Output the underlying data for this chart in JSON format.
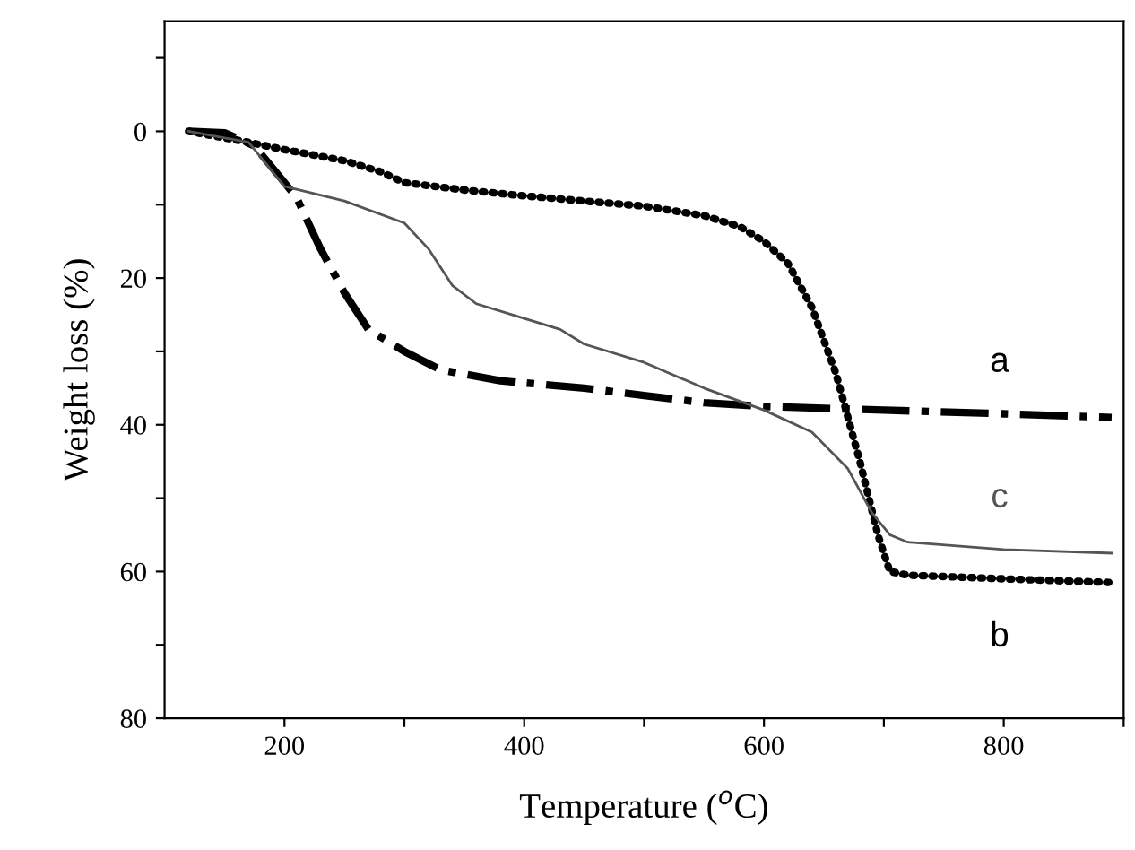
{
  "chart_data": {
    "type": "line",
    "xlabel": "Temperature ($^{o}$C)",
    "ylabel": "Weight loss (%)",
    "xlim": [
      100,
      900
    ],
    "xticks": [
      200,
      {
        "value": 300,
        "label": null
      },
      400,
      {
        "value": 500,
        "label": null
      },
      600,
      {
        "value": 700,
        "label": null
      },
      800,
      {
        "value": 900,
        "label": null
      }
    ],
    "ylim": [
      80,
      -15
    ],
    "yticks": [
      {
        "value": -10,
        "label": null
      },
      0,
      {
        "value": 10,
        "label": null
      },
      20,
      {
        "value": 30,
        "label": null
      },
      40,
      {
        "value": 50,
        "label": null
      },
      60,
      {
        "value": 70,
        "label": null
      },
      80
    ],
    "grid": false,
    "legend": false,
    "series": [
      {
        "name": "a",
        "color": "#000000",
        "line_style": "dashdot",
        "x": [
          120,
          150,
          175,
          200,
          210,
          230,
          250,
          270,
          300,
          330,
          380,
          450,
          500,
          550,
          600,
          700,
          800,
          890
        ],
        "values": [
          0,
          0.2,
          2,
          7,
          9,
          16,
          22,
          27,
          30,
          32.5,
          34,
          35,
          36,
          37,
          37.5,
          38,
          38.5,
          39
        ]
      },
      {
        "name": "b",
        "color": "#000000",
        "line_style": "dotted",
        "x": [
          120,
          170,
          200,
          250,
          280,
          300,
          350,
          400,
          450,
          500,
          550,
          580,
          600,
          620,
          640,
          660,
          680,
          695,
          705,
          720,
          800,
          890
        ],
        "values": [
          0,
          1.5,
          2.5,
          4,
          5.5,
          7,
          8,
          8.8,
          9.5,
          10.2,
          11.5,
          13,
          15,
          18,
          24,
          33,
          45,
          55,
          60,
          60.5,
          61,
          61.5
        ]
      },
      {
        "name": "c",
        "color": "#555555",
        "line_style": "solid",
        "x": [
          120,
          170,
          200,
          250,
          300,
          320,
          340,
          360,
          400,
          430,
          450,
          500,
          550,
          600,
          640,
          670,
          690,
          705,
          720,
          800,
          890
        ],
        "values": [
          0,
          1.5,
          7.5,
          9.5,
          12.5,
          16,
          21,
          23.5,
          25.5,
          27,
          29,
          31.5,
          35,
          38,
          41,
          46,
          52,
          55,
          56,
          57,
          57.5
        ]
      }
    ]
  }
}
